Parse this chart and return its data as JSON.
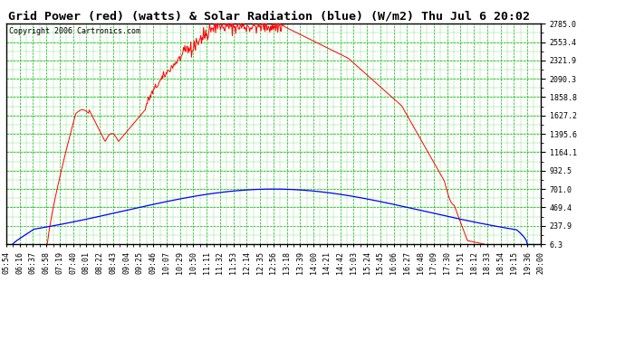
{
  "title": "Grid Power (red) (watts) & Solar Radiation (blue) (W/m2) Thu Jul 6 20:02",
  "copyright": "Copyright 2006 Cartronics.com",
  "bg_color": "#ffffff",
  "plot_bg_color": "#ffffff",
  "grid_color": "#00bb00",
  "y_min": 6.3,
  "y_max": 2785.0,
  "ytick_labels": [
    "6.3",
    "237.9",
    "469.4",
    "701.0",
    "932.5",
    "1164.1",
    "1395.6",
    "1627.2",
    "1858.8",
    "2090.3",
    "2321.9",
    "2553.4",
    "2785.0"
  ],
  "ytick_values": [
    6.3,
    237.9,
    469.4,
    701.0,
    932.5,
    1164.1,
    1395.6,
    1627.2,
    1858.8,
    2090.3,
    2321.9,
    2553.4,
    2785.0
  ],
  "x_labels": [
    "05:54",
    "06:16",
    "06:37",
    "06:58",
    "07:19",
    "07:40",
    "08:01",
    "08:22",
    "08:43",
    "09:04",
    "09:25",
    "09:46",
    "10:07",
    "10:29",
    "10:50",
    "11:11",
    "11:32",
    "11:53",
    "12:14",
    "12:35",
    "12:56",
    "13:18",
    "13:39",
    "14:00",
    "14:21",
    "14:42",
    "15:03",
    "15:24",
    "15:45",
    "16:06",
    "16:27",
    "16:48",
    "17:09",
    "17:30",
    "17:51",
    "18:12",
    "18:33",
    "18:54",
    "19:15",
    "19:36",
    "20:00"
  ],
  "red_color": "#ff0000",
  "blue_color": "#0000ff",
  "title_fontsize": 9.5,
  "copyright_fontsize": 6,
  "tick_fontsize": 6,
  "outer_border_color": "#000000"
}
